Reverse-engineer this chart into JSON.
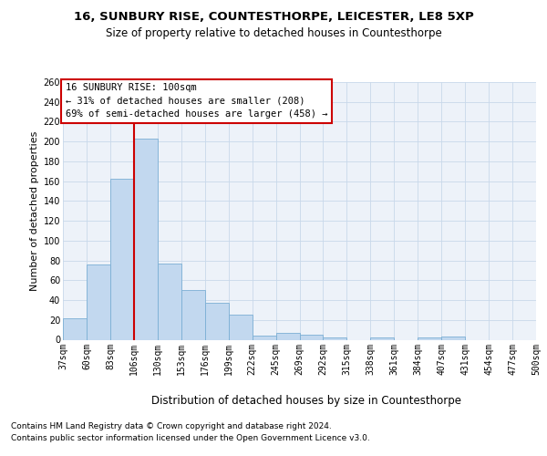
{
  "title1": "16, SUNBURY RISE, COUNTESTHORPE, LEICESTER, LE8 5XP",
  "title2": "Size of property relative to detached houses in Countesthorpe",
  "xlabel": "Distribution of detached houses by size in Countesthorpe",
  "ylabel": "Number of detached properties",
  "bar_values": [
    22,
    76,
    162,
    203,
    77,
    50,
    37,
    25,
    4,
    7,
    5,
    2,
    0,
    2,
    0,
    2,
    3,
    0,
    0,
    0
  ],
  "bar_labels": [
    "37sqm",
    "60sqm",
    "83sqm",
    "106sqm",
    "130sqm",
    "153sqm",
    "176sqm",
    "199sqm",
    "222sqm",
    "245sqm",
    "269sqm",
    "292sqm",
    "315sqm",
    "338sqm",
    "361sqm",
    "384sqm",
    "407sqm",
    "431sqm",
    "454sqm",
    "477sqm",
    "500sqm"
  ],
  "bar_color": "#c2d8ef",
  "bar_edge_color": "#7bafd4",
  "bar_edge_width": 0.6,
  "grid_color": "#c8d8ea",
  "bg_color": "#edf2f9",
  "vline_color": "#cc0000",
  "vline_x": 3.0,
  "annotation_text": "16 SUNBURY RISE: 100sqm\n← 31% of detached houses are smaller (208)\n69% of semi-detached houses are larger (458) →",
  "annotation_box_color": "#ffffff",
  "annotation_box_edge_color": "#cc0000",
  "ylim_max": 260,
  "yticks": [
    0,
    20,
    40,
    60,
    80,
    100,
    120,
    140,
    160,
    180,
    200,
    220,
    240,
    260
  ],
  "title1_fontsize": 9.5,
  "title2_fontsize": 8.5,
  "xlabel_fontsize": 8.5,
  "ylabel_fontsize": 8,
  "tick_fontsize": 7,
  "annotation_fontsize": 7.5,
  "footnote1": "Contains HM Land Registry data © Crown copyright and database right 2024.",
  "footnote2": "Contains public sector information licensed under the Open Government Licence v3.0.",
  "footnote_fontsize": 6.5
}
